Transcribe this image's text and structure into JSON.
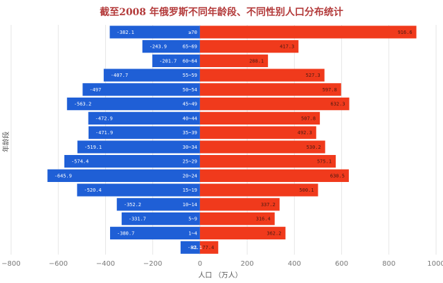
{
  "chart_data": {
    "type": "bar",
    "orientation": "horizontal",
    "title": "截至2008 年俄罗斯不同年龄段、不同性别人口分布统计",
    "xlabel": "人口 （万人）",
    "ylabel": "年龄段",
    "xlim": [
      -800,
      1000
    ],
    "xticks": [
      -800,
      -600,
      -400,
      -200,
      0,
      200,
      400,
      600,
      800,
      1000
    ],
    "grid": true,
    "legend": "none",
    "colors": {
      "male": "#1f5fd6",
      "female": "#f03a1c"
    },
    "categories": [
      "≥70",
      "65~69",
      "60~64",
      "55~59",
      "50~54",
      "45~49",
      "40~44",
      "35~39",
      "30~34",
      "25~29",
      "20~24",
      "15~19",
      "10~14",
      "5~9",
      "1~4",
      "<1"
    ],
    "series": [
      {
        "values": [
          -382.1,
          -243.9,
          -201.7,
          -407.7,
          -497,
          -563.2,
          -472.9,
          -471.9,
          -519.1,
          -574.4,
          -645.9,
          -520.4,
          -352.2,
          -331.7,
          -380.7,
          -82.1
        ]
      },
      {
        "values": [
          916.6,
          417.3,
          288.1,
          527.3,
          597.8,
          632.3,
          507.8,
          492.3,
          530.2,
          575.1,
          630.5,
          500.1,
          337.2,
          316.4,
          362.2,
          77.4
        ]
      }
    ]
  }
}
